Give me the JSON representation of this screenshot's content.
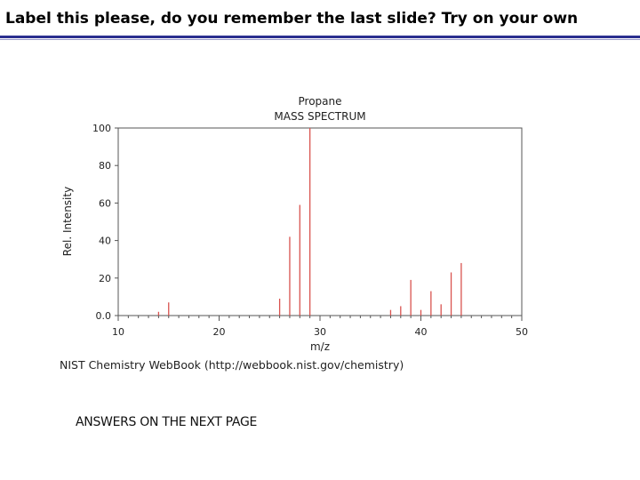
{
  "slide": {
    "title": "Label this please, do you remember the last slide?  Try on your own",
    "answers_note": "ANSWERS ON THE NEXT PAGE"
  },
  "credit": "NIST Chemistry WebBook (http://webbook.nist.gov/chemistry)",
  "colors": {
    "title_rule": "#2b2f8f",
    "peak": "#d9534f",
    "axis": "#555555"
  },
  "chart_data": {
    "type": "bar",
    "title": "Propane",
    "subtitle": "MASS SPECTRUM",
    "xlabel": "m/z",
    "ylabel": "Rel. Intensity",
    "xlim": [
      10,
      50
    ],
    "ylim": [
      0,
      100
    ],
    "x_ticks": [
      10,
      20,
      30,
      40,
      50
    ],
    "y_ticks": [
      "0.0",
      "20",
      "40",
      "60",
      "80",
      "100"
    ],
    "y_tick_values": [
      0,
      20,
      40,
      60,
      80,
      100
    ],
    "grid": false,
    "series": [
      {
        "x": [
          14,
          15,
          26,
          27,
          28,
          29,
          37,
          38,
          39,
          40,
          41,
          42,
          43,
          44
        ],
        "values": [
          2,
          7,
          9,
          42,
          59,
          100,
          3,
          5,
          19,
          3,
          13,
          6,
          23,
          28
        ]
      }
    ]
  }
}
